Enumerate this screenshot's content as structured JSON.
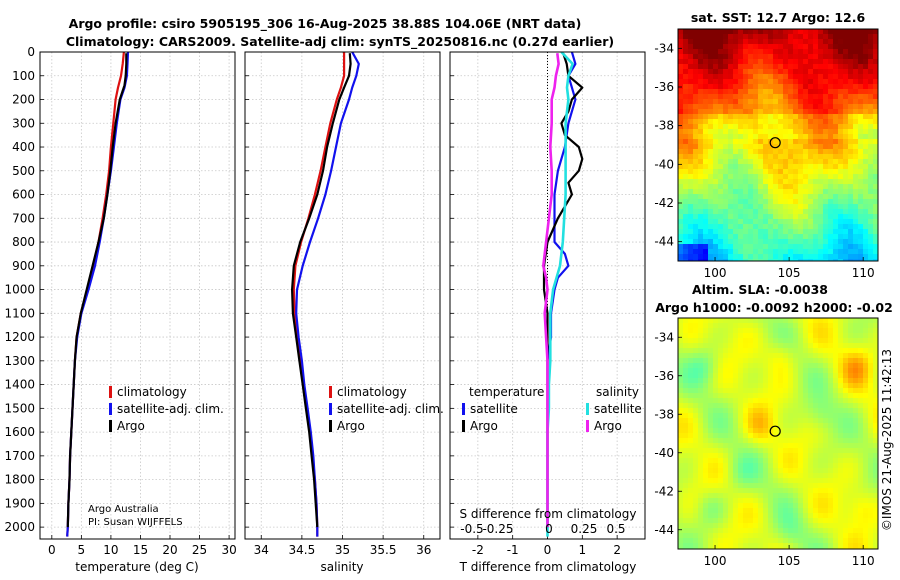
{
  "figure": {
    "title_line1": "Argo profile: csiro 5905195_306 16-Aug-2025 38.88S 104.06E (NRT data)",
    "title_line2": "Climatology: CARS2009. Satellite-adj clim: synTS_20250816.nc (0.27d earlier)",
    "credit_line1": "Argo Australia",
    "credit_line2": "PI: Susan WIJFFELS",
    "watermark": "©IMOS 21-Aug-2025 11:42:13",
    "colors": {
      "climatology": "#dd1111",
      "satellite": "#1111ee",
      "argo": "#000000",
      "sal_satellite": "#22e0e0",
      "sal_argo": "#ee22ee"
    }
  },
  "chart_data": [
    {
      "id": "temperature",
      "type": "line",
      "xlabel": "temperature (deg C)",
      "ylabel": "",
      "xlim": [
        -2,
        31
      ],
      "ylim": [
        2050,
        0
      ],
      "xticks": [
        0,
        5,
        10,
        15,
        20,
        25,
        30
      ],
      "yticks": [
        0,
        100,
        200,
        300,
        400,
        500,
        600,
        700,
        800,
        900,
        1000,
        1100,
        1200,
        1300,
        1400,
        1500,
        1600,
        1700,
        1800,
        1900,
        2000
      ],
      "legend": [
        "climatology",
        "satellite-adj. clim.",
        "Argo"
      ],
      "series": [
        {
          "name": "climatology",
          "color": "#dd1111",
          "depth": [
            0,
            50,
            100,
            150,
            200,
            300,
            400,
            500,
            600,
            700,
            800,
            900,
            1000,
            1100,
            1200,
            1300,
            1400,
            1500,
            1600,
            1700,
            1800,
            1900,
            2000,
            2040
          ],
          "values": [
            12.2,
            12.0,
            11.7,
            11.2,
            10.8,
            10.4,
            10.0,
            9.7,
            9.2,
            8.6,
            7.9,
            7.0,
            6.0,
            4.9,
            4.2,
            3.9,
            3.7,
            3.5,
            3.3,
            3.1,
            3.0,
            2.8,
            2.7,
            2.6
          ]
        },
        {
          "name": "satellite-adj. clim.",
          "color": "#1111ee",
          "depth": [
            0,
            50,
            100,
            150,
            200,
            300,
            400,
            500,
            600,
            700,
            800,
            900,
            1000,
            1100,
            1200,
            1300,
            1400,
            1500,
            1600,
            1700,
            1800,
            1900,
            2000,
            2040
          ],
          "values": [
            12.9,
            12.8,
            12.7,
            12.3,
            11.6,
            11.0,
            10.5,
            10.0,
            9.4,
            8.8,
            8.1,
            7.3,
            6.2,
            5.0,
            4.3,
            3.9,
            3.7,
            3.5,
            3.3,
            3.1,
            3.0,
            2.8,
            2.7,
            2.6
          ]
        },
        {
          "name": "Argo",
          "color": "#000000",
          "depth": [
            5,
            50,
            100,
            140,
            200,
            300,
            400,
            500,
            600,
            700,
            800,
            900,
            1000,
            1100,
            1200,
            1300,
            1400,
            1500,
            1600,
            1700,
            1800,
            1900,
            2000
          ],
          "values": [
            12.6,
            12.6,
            12.5,
            12.3,
            11.5,
            10.8,
            10.3,
            9.9,
            9.4,
            8.8,
            7.9,
            6.9,
            5.9,
            4.9,
            4.2,
            3.9,
            3.7,
            3.5,
            3.3,
            3.1,
            3.0,
            2.8,
            2.7
          ]
        }
      ]
    },
    {
      "id": "salinity",
      "type": "line",
      "xlabel": "salinity",
      "ylabel": "",
      "xlim": [
        33.8,
        36.2
      ],
      "ylim": [
        2050,
        0
      ],
      "xticks": [
        34,
        34.5,
        35,
        35.5,
        36
      ],
      "legend": [
        "climatology",
        "satellite-adj. clim.",
        "Argo"
      ],
      "series": [
        {
          "name": "climatology",
          "color": "#dd1111",
          "depth": [
            0,
            50,
            100,
            150,
            200,
            300,
            400,
            500,
            600,
            700,
            800,
            900,
            1000,
            1100,
            1200,
            1300,
            1400,
            1500,
            1600,
            1700,
            1800,
            1900,
            2000,
            2040
          ],
          "values": [
            35.02,
            35.02,
            35.02,
            34.98,
            34.93,
            34.85,
            34.79,
            34.73,
            34.66,
            34.58,
            34.49,
            34.42,
            34.4,
            34.41,
            34.44,
            34.48,
            34.52,
            34.56,
            34.6,
            34.63,
            34.66,
            34.68,
            34.69,
            34.69
          ]
        },
        {
          "name": "satellite-adj. clim.",
          "color": "#1111ee",
          "depth": [
            0,
            50,
            100,
            150,
            200,
            300,
            400,
            500,
            600,
            700,
            800,
            900,
            1000,
            1100,
            1200,
            1300,
            1400,
            1500,
            1600,
            1700,
            1800,
            1900,
            2000,
            2040
          ],
          "values": [
            35.12,
            35.2,
            35.17,
            35.12,
            35.08,
            34.98,
            34.92,
            34.86,
            34.79,
            34.7,
            34.6,
            34.51,
            34.44,
            34.43,
            34.46,
            34.5,
            34.53,
            34.57,
            34.61,
            34.64,
            34.66,
            34.68,
            34.69,
            34.69
          ]
        },
        {
          "name": "Argo",
          "color": "#000000",
          "depth": [
            5,
            50,
            100,
            150,
            200,
            300,
            400,
            500,
            600,
            700,
            800,
            900,
            1000,
            1100,
            1200,
            1300,
            1400,
            1500,
            1600,
            1700,
            1800,
            1900,
            2000
          ],
          "values": [
            35.09,
            35.1,
            35.08,
            35.02,
            34.96,
            34.88,
            34.81,
            34.76,
            34.69,
            34.59,
            34.48,
            34.4,
            34.38,
            34.39,
            34.43,
            34.47,
            34.51,
            34.55,
            34.59,
            34.62,
            34.65,
            34.67,
            34.69
          ]
        }
      ]
    },
    {
      "id": "differences",
      "type": "line",
      "xlabel": "T difference from climatology",
      "x2label": "S difference from climatology",
      "xlim": [
        -2.8,
        2.8
      ],
      "x2lim": [
        -0.7,
        0.7
      ],
      "ylim": [
        2050,
        0
      ],
      "xticks": [
        -2,
        -1,
        0,
        1,
        2
      ],
      "x2ticks": [
        -0.5,
        -0.25,
        0,
        0.25,
        0.5
      ],
      "x2ticklabels": [
        "-0.5",
        "-0.25",
        "0",
        "0.25",
        "0.5"
      ],
      "legend_titles": [
        "temperature",
        "salinity"
      ],
      "legend": [
        "satellite",
        "Argo",
        "satellite",
        "Argo"
      ],
      "series": [
        {
          "name": "temperature satellite",
          "color": "#1111ee",
          "depth": [
            0,
            50,
            100,
            150,
            200,
            300,
            400,
            500,
            600,
            700,
            800,
            850,
            900,
            950,
            1000,
            1100,
            1200,
            1300,
            1400,
            1500,
            1600,
            1700,
            1800,
            1900,
            2000
          ],
          "values": [
            0.7,
            0.8,
            0.6,
            0.7,
            0.8,
            0.6,
            0.5,
            0.3,
            0.2,
            0.2,
            0.2,
            0.5,
            0.6,
            0.3,
            0.2,
            0.1,
            0.1,
            0.0,
            0.0,
            0.0,
            0.0,
            0.0,
            0.0,
            0.0,
            0.0
          ]
        },
        {
          "name": "temperature Argo",
          "color": "#000000",
          "depth": [
            5,
            50,
            100,
            150,
            200,
            250,
            300,
            350,
            400,
            450,
            500,
            550,
            600,
            650,
            700,
            800,
            900,
            1000,
            1100,
            1200,
            1300,
            1400,
            1500,
            1600,
            1700,
            1800,
            1900,
            2000
          ],
          "values": [
            0.45,
            0.55,
            0.6,
            1.0,
            0.7,
            0.6,
            0.4,
            0.5,
            0.9,
            1.0,
            0.9,
            0.6,
            0.7,
            0.5,
            0.3,
            0.0,
            -0.1,
            -0.1,
            0.0,
            0.0,
            0.0,
            0.0,
            0.0,
            0.0,
            0.0,
            0.0,
            0.0,
            0.0
          ]
        },
        {
          "name": "salinity satellite",
          "color": "#22e0e0",
          "depth": [
            0,
            50,
            100,
            150,
            200,
            300,
            400,
            500,
            600,
            700,
            800,
            900,
            1000,
            1100,
            1200,
            1300,
            1400,
            1500,
            1600,
            1700,
            1800,
            1900,
            2000,
            2040
          ],
          "values": [
            0.1,
            0.18,
            0.15,
            0.14,
            0.15,
            0.13,
            0.13,
            0.13,
            0.13,
            0.12,
            0.11,
            0.09,
            0.04,
            0.02,
            0.02,
            0.02,
            0.01,
            0.01,
            0.0,
            0.0,
            0.0,
            0.0,
            0.0,
            0.0
          ]
        },
        {
          "name": "salinity Argo",
          "color": "#ee22ee",
          "depth": [
            5,
            50,
            100,
            150,
            200,
            300,
            400,
            500,
            600,
            700,
            800,
            900,
            950,
            1000,
            1100,
            1200,
            1300,
            1400,
            1500,
            1600,
            1700,
            1800,
            1900,
            2000
          ],
          "values": [
            0.07,
            0.08,
            0.06,
            0.05,
            0.03,
            0.03,
            0.02,
            0.03,
            0.03,
            0.01,
            -0.01,
            -0.03,
            -0.01,
            0.0,
            -0.02,
            -0.01,
            0.0,
            0.0,
            0.0,
            0.0,
            0.0,
            0.0,
            0.0,
            0.0
          ]
        }
      ]
    },
    {
      "id": "sst_map",
      "type": "heatmap",
      "title": "sat. SST: 12.7 Argo: 12.6",
      "xlim": [
        97.5,
        111
      ],
      "ylim": [
        -45,
        -33
      ],
      "xticks": [
        100,
        105,
        110
      ],
      "yticks": [
        -34,
        -36,
        -38,
        -40,
        -42,
        -44
      ],
      "float_position": {
        "lon": 104.06,
        "lat": -38.88
      }
    },
    {
      "id": "sla_map",
      "type": "heatmap",
      "title": "Altim. SLA: -0.0038",
      "subtitle": "Argo h1000: -0.0092 h2000: -0.02",
      "xlim": [
        97.5,
        111
      ],
      "ylim": [
        -45,
        -33
      ],
      "xticks": [
        100,
        105,
        110
      ],
      "yticks": [
        -34,
        -36,
        -38,
        -40,
        -42,
        -44
      ],
      "float_position": {
        "lon": 104.06,
        "lat": -38.88
      }
    }
  ]
}
